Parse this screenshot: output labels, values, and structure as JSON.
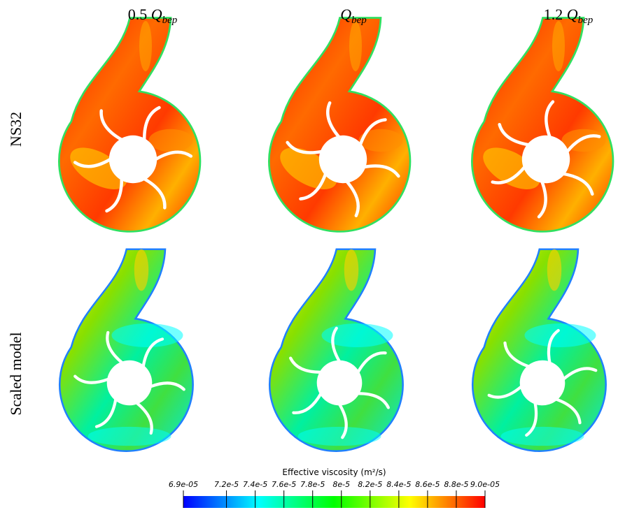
{
  "columns": [
    {
      "coefficient": "0.5",
      "symbol": "Q",
      "subscript": "bep"
    },
    {
      "symbol": "Q",
      "subscript": "bep"
    },
    {
      "coefficient": "1.2",
      "symbol": "Q",
      "subscript": "bep"
    }
  ],
  "rows": [
    "NS32",
    "Scaled model"
  ],
  "colorbar": {
    "title": "Effective viscosity (m²/s)",
    "clim": [
      6.9e-05,
      9e-05
    ],
    "ticks": [
      {
        "value": 6.9e-05,
        "label": "6.9e-05"
      },
      {
        "value": 7.2e-05,
        "label": "7.2e-5"
      },
      {
        "value": 7.4e-05,
        "label": "7.4e-5"
      },
      {
        "value": 7.6e-05,
        "label": "7.6e-5"
      },
      {
        "value": 7.8e-05,
        "label": "7.8e-5"
      },
      {
        "value": 8e-05,
        "label": "8e-5"
      },
      {
        "value": 8.2e-05,
        "label": "8.2e-5"
      },
      {
        "value": 8.4e-05,
        "label": "8.4e-5"
      },
      {
        "value": 8.6e-05,
        "label": "8.6e-5"
      },
      {
        "value": 8.8e-05,
        "label": "8.8e-5"
      },
      {
        "value": 9e-05,
        "label": "9.0e-05"
      }
    ]
  }
}
